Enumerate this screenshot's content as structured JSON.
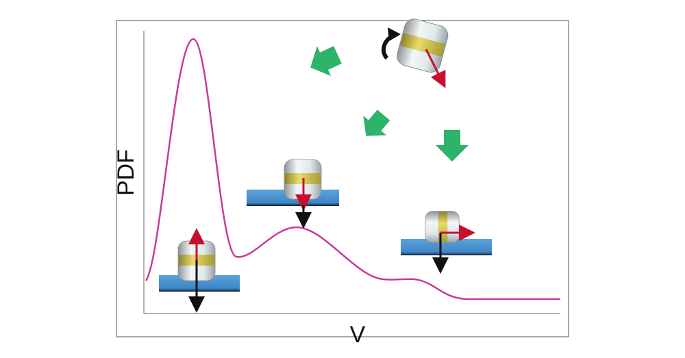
{
  "y_axis_label": "PDF",
  "x_axis_label": "V"
}
